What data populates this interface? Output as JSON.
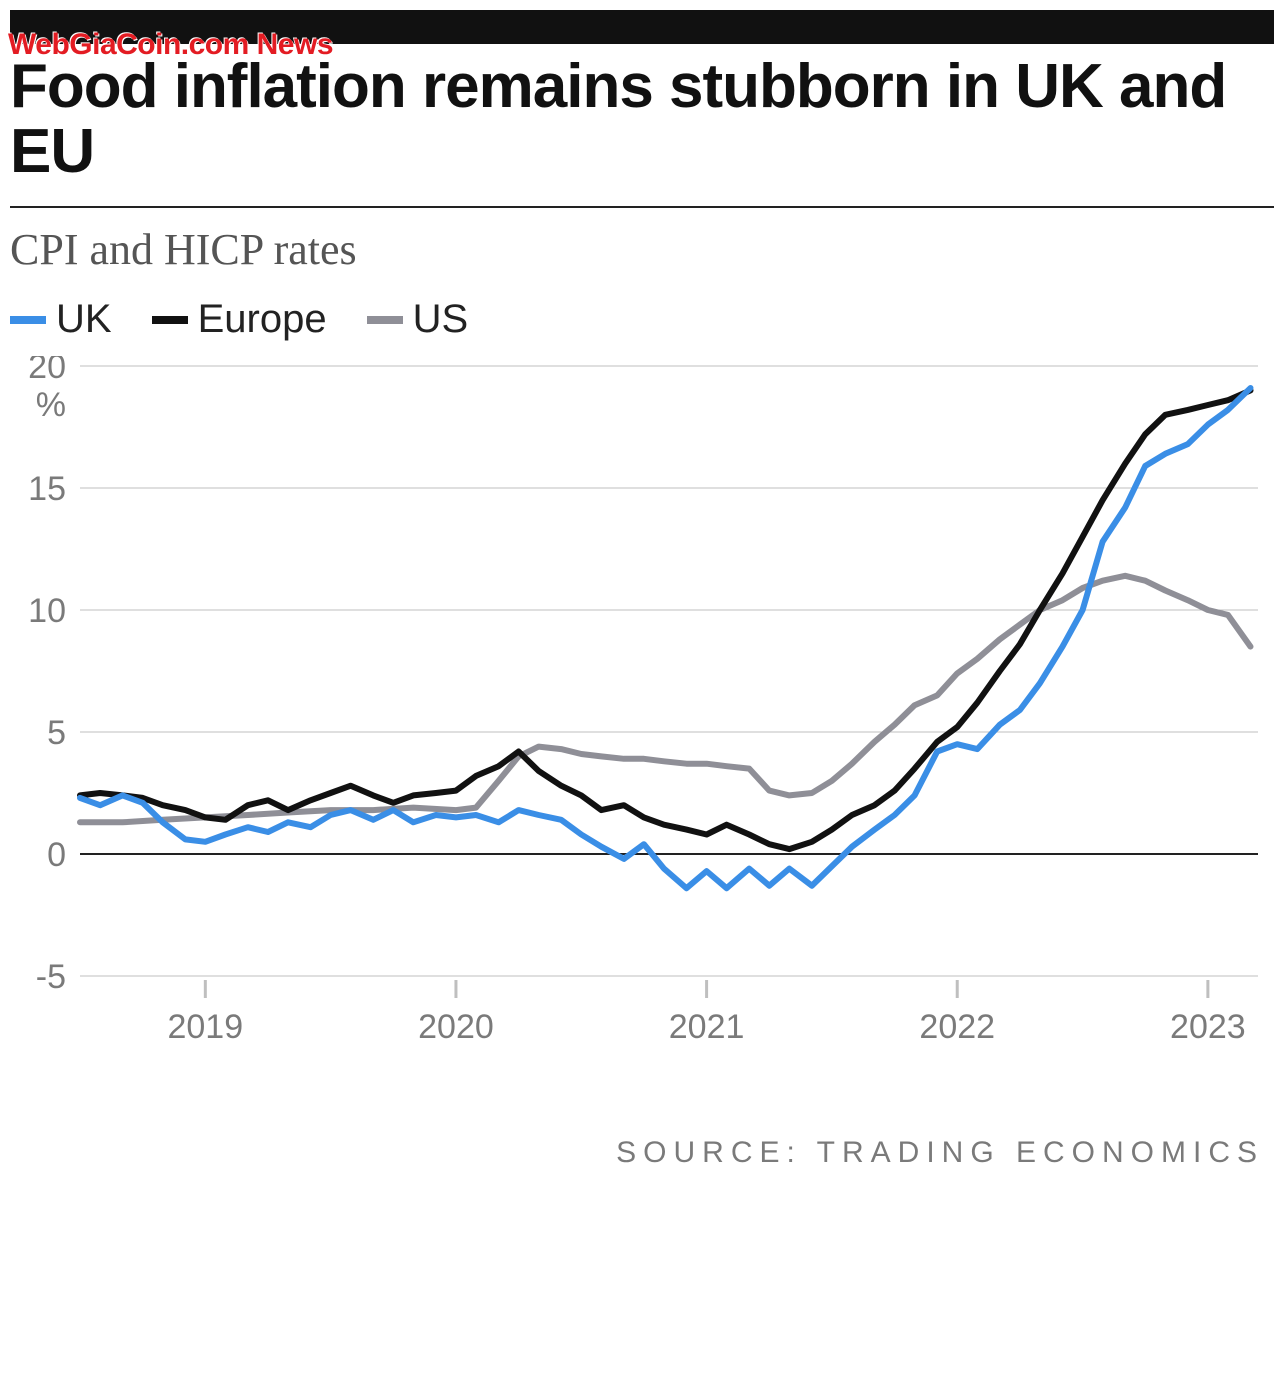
{
  "watermark": "WebGiaCoin.com News",
  "title": "Food inflation remains stubborn in UK and EU",
  "subtitle": "CPI and HICP rates",
  "source_label": "SOURCE: TRADING ECONOMICS",
  "chart": {
    "type": "line",
    "background_color": "#ffffff",
    "grid_color": "#bfbfbf",
    "zero_line_color": "#222222",
    "unit": "%",
    "x": {
      "min": 2018.5,
      "max": 2023.2,
      "ticks": [
        2019,
        2020,
        2021,
        2022,
        2023
      ],
      "label_fontsize": 34,
      "label_color": "#7a7a7a"
    },
    "y": {
      "min": -5,
      "max": 20,
      "ticks": [
        -5,
        0,
        5,
        10,
        15,
        20
      ],
      "label_fontsize": 34,
      "label_color": "#7a7a7a"
    },
    "line_width": 6,
    "legend": {
      "items": [
        {
          "key": "uk",
          "label": "UK",
          "color": "#3a8ee6"
        },
        {
          "key": "europe",
          "label": "Europe",
          "color": "#111111"
        },
        {
          "key": "us",
          "label": "US",
          "color": "#8f8f97"
        }
      ],
      "swatch_width": 36,
      "swatch_height": 8,
      "fontsize": 40
    },
    "series": {
      "uk": {
        "color": "#3a8ee6",
        "points": [
          [
            2018.5,
            2.3
          ],
          [
            2018.58,
            2.0
          ],
          [
            2018.67,
            2.4
          ],
          [
            2018.75,
            2.1
          ],
          [
            2018.83,
            1.3
          ],
          [
            2018.92,
            0.6
          ],
          [
            2019.0,
            0.5
          ],
          [
            2019.08,
            0.8
          ],
          [
            2019.17,
            1.1
          ],
          [
            2019.25,
            0.9
          ],
          [
            2019.33,
            1.3
          ],
          [
            2019.42,
            1.1
          ],
          [
            2019.5,
            1.6
          ],
          [
            2019.58,
            1.8
          ],
          [
            2019.67,
            1.4
          ],
          [
            2019.75,
            1.8
          ],
          [
            2019.83,
            1.3
          ],
          [
            2019.92,
            1.6
          ],
          [
            2020.0,
            1.5
          ],
          [
            2020.08,
            1.6
          ],
          [
            2020.17,
            1.3
          ],
          [
            2020.25,
            1.8
          ],
          [
            2020.33,
            1.6
          ],
          [
            2020.42,
            1.4
          ],
          [
            2020.5,
            0.8
          ],
          [
            2020.58,
            0.3
          ],
          [
            2020.67,
            -0.2
          ],
          [
            2020.75,
            0.4
          ],
          [
            2020.83,
            -0.6
          ],
          [
            2020.92,
            -1.4
          ],
          [
            2021.0,
            -0.7
          ],
          [
            2021.08,
            -1.4
          ],
          [
            2021.17,
            -0.6
          ],
          [
            2021.25,
            -1.3
          ],
          [
            2021.33,
            -0.6
          ],
          [
            2021.42,
            -1.3
          ],
          [
            2021.5,
            -0.5
          ],
          [
            2021.58,
            0.3
          ],
          [
            2021.67,
            1.0
          ],
          [
            2021.75,
            1.6
          ],
          [
            2021.83,
            2.4
          ],
          [
            2021.92,
            4.2
          ],
          [
            2022.0,
            4.5
          ],
          [
            2022.08,
            4.3
          ],
          [
            2022.17,
            5.3
          ],
          [
            2022.25,
            5.9
          ],
          [
            2022.33,
            7.0
          ],
          [
            2022.42,
            8.5
          ],
          [
            2022.5,
            10.0
          ],
          [
            2022.58,
            12.8
          ],
          [
            2022.67,
            14.2
          ],
          [
            2022.75,
            15.9
          ],
          [
            2022.83,
            16.4
          ],
          [
            2022.92,
            16.8
          ],
          [
            2023.0,
            17.6
          ],
          [
            2023.08,
            18.2
          ],
          [
            2023.17,
            19.1
          ]
        ]
      },
      "europe": {
        "color": "#111111",
        "points": [
          [
            2018.5,
            2.4
          ],
          [
            2018.58,
            2.5
          ],
          [
            2018.67,
            2.4
          ],
          [
            2018.75,
            2.3
          ],
          [
            2018.83,
            2.0
          ],
          [
            2018.92,
            1.8
          ],
          [
            2019.0,
            1.5
          ],
          [
            2019.08,
            1.4
          ],
          [
            2019.17,
            2.0
          ],
          [
            2019.25,
            2.2
          ],
          [
            2019.33,
            1.8
          ],
          [
            2019.42,
            2.2
          ],
          [
            2019.5,
            2.5
          ],
          [
            2019.58,
            2.8
          ],
          [
            2019.67,
            2.4
          ],
          [
            2019.75,
            2.1
          ],
          [
            2019.83,
            2.4
          ],
          [
            2019.92,
            2.5
          ],
          [
            2020.0,
            2.6
          ],
          [
            2020.08,
            3.2
          ],
          [
            2020.17,
            3.6
          ],
          [
            2020.25,
            4.2
          ],
          [
            2020.33,
            3.4
          ],
          [
            2020.42,
            2.8
          ],
          [
            2020.5,
            2.4
          ],
          [
            2020.58,
            1.8
          ],
          [
            2020.67,
            2.0
          ],
          [
            2020.75,
            1.5
          ],
          [
            2020.83,
            1.2
          ],
          [
            2020.92,
            1.0
          ],
          [
            2021.0,
            0.8
          ],
          [
            2021.08,
            1.2
          ],
          [
            2021.17,
            0.8
          ],
          [
            2021.25,
            0.4
          ],
          [
            2021.33,
            0.2
          ],
          [
            2021.42,
            0.5
          ],
          [
            2021.5,
            1.0
          ],
          [
            2021.58,
            1.6
          ],
          [
            2021.67,
            2.0
          ],
          [
            2021.75,
            2.6
          ],
          [
            2021.83,
            3.5
          ],
          [
            2021.92,
            4.6
          ],
          [
            2022.0,
            5.2
          ],
          [
            2022.08,
            6.2
          ],
          [
            2022.17,
            7.5
          ],
          [
            2022.25,
            8.6
          ],
          [
            2022.33,
            10.0
          ],
          [
            2022.42,
            11.5
          ],
          [
            2022.5,
            13.0
          ],
          [
            2022.58,
            14.5
          ],
          [
            2022.67,
            16.0
          ],
          [
            2022.75,
            17.2
          ],
          [
            2022.83,
            18.0
          ],
          [
            2022.92,
            18.2
          ],
          [
            2023.0,
            18.4
          ],
          [
            2023.08,
            18.6
          ],
          [
            2023.17,
            19.0
          ]
        ]
      },
      "us": {
        "color": "#8f8f97",
        "points": [
          [
            2018.5,
            1.3
          ],
          [
            2018.67,
            1.3
          ],
          [
            2018.83,
            1.4
          ],
          [
            2019.0,
            1.5
          ],
          [
            2019.17,
            1.6
          ],
          [
            2019.33,
            1.7
          ],
          [
            2019.5,
            1.8
          ],
          [
            2019.67,
            1.8
          ],
          [
            2019.83,
            1.9
          ],
          [
            2020.0,
            1.8
          ],
          [
            2020.08,
            1.9
          ],
          [
            2020.17,
            3.0
          ],
          [
            2020.25,
            4.0
          ],
          [
            2020.33,
            4.4
          ],
          [
            2020.42,
            4.3
          ],
          [
            2020.5,
            4.1
          ],
          [
            2020.58,
            4.0
          ],
          [
            2020.67,
            3.9
          ],
          [
            2020.75,
            3.9
          ],
          [
            2020.83,
            3.8
          ],
          [
            2020.92,
            3.7
          ],
          [
            2021.0,
            3.7
          ],
          [
            2021.08,
            3.6
          ],
          [
            2021.17,
            3.5
          ],
          [
            2021.25,
            2.6
          ],
          [
            2021.33,
            2.4
          ],
          [
            2021.42,
            2.5
          ],
          [
            2021.5,
            3.0
          ],
          [
            2021.58,
            3.7
          ],
          [
            2021.67,
            4.6
          ],
          [
            2021.75,
            5.3
          ],
          [
            2021.83,
            6.1
          ],
          [
            2021.92,
            6.5
          ],
          [
            2022.0,
            7.4
          ],
          [
            2022.08,
            8.0
          ],
          [
            2022.17,
            8.8
          ],
          [
            2022.25,
            9.4
          ],
          [
            2022.33,
            10.0
          ],
          [
            2022.42,
            10.4
          ],
          [
            2022.5,
            10.9
          ],
          [
            2022.58,
            11.2
          ],
          [
            2022.67,
            11.4
          ],
          [
            2022.75,
            11.2
          ],
          [
            2022.83,
            10.8
          ],
          [
            2022.92,
            10.4
          ],
          [
            2023.0,
            10.0
          ],
          [
            2023.08,
            9.8
          ],
          [
            2023.17,
            8.5
          ]
        ]
      }
    }
  }
}
